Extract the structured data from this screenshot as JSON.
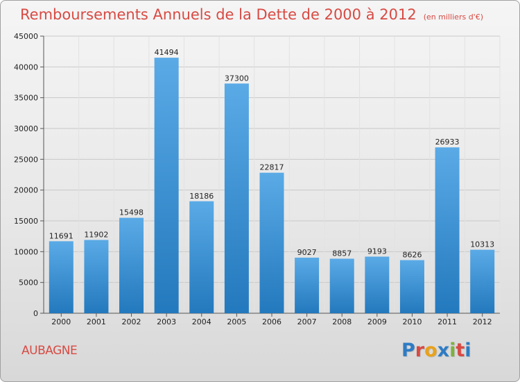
{
  "page": {
    "title": "Remboursements Annuels de la Dette de 2000 à 2012",
    "unit": "(en milliers d'€)",
    "city": "AUBAGNE",
    "logo_text": "Proxiti"
  },
  "colors": {
    "title": "#d84a43",
    "bar_top": "#5aaae6",
    "bar_bottom": "#2379bd",
    "grid": "#c8c8c8",
    "logo_letters": [
      "#2e7cc4",
      "#d84a43",
      "#e8a21c",
      "#2e7cc4",
      "#7cb33c",
      "#d84a43",
      "#2e7cc4"
    ]
  },
  "chart_data": {
    "type": "bar",
    "title": "Remboursements Annuels de la Dette de 2000 à 2012",
    "xlabel": "",
    "ylabel": "",
    "categories": [
      "2000",
      "2001",
      "2002",
      "2003",
      "2004",
      "2005",
      "2006",
      "2007",
      "2008",
      "2009",
      "2010",
      "2011",
      "2012"
    ],
    "values": [
      11691,
      11902,
      15498,
      41494,
      18186,
      37300,
      22817,
      9027,
      8857,
      9193,
      8626,
      26933,
      10313
    ],
    "ylim": [
      0,
      45000
    ],
    "yticks": [
      0,
      5000,
      10000,
      15000,
      20000,
      25000,
      30000,
      35000,
      40000,
      45000
    ],
    "grid": true,
    "data_labels": true
  }
}
